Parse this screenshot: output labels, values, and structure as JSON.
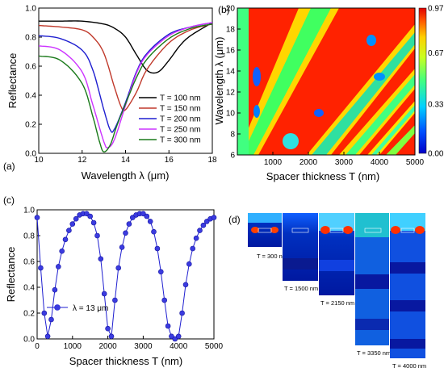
{
  "panels": {
    "a": {
      "label": "(a)",
      "ylabel": "Reflectance",
      "xlabel": "Wavelength λ (μm)",
      "xlim": [
        10,
        18
      ],
      "ylim": [
        0,
        1.0
      ],
      "xticks": [
        "10",
        "12",
        "14",
        "16",
        "18"
      ],
      "yticks": [
        "0.0",
        "0.2",
        "0.4",
        "0.6",
        "0.8",
        "1.0"
      ]
    },
    "b": {
      "label": "(b)",
      "ylabel": "Wavelength λ (μm)",
      "xlabel": "Spacer thickness T (nm)",
      "xlim": [
        0,
        5000
      ],
      "ylim": [
        6,
        20
      ],
      "xticks": [
        "1000",
        "2000",
        "3000",
        "4000",
        "5000"
      ],
      "yticks": [
        "6",
        "8",
        "10",
        "12",
        "14",
        "16",
        "18",
        "20"
      ],
      "colorbar_ticks": [
        "0.97",
        "0.67",
        "0.33",
        "0.00"
      ]
    },
    "c": {
      "label": "(c)",
      "ylabel": "Reflectance",
      "xlabel": "Spacer thickness T (nm)",
      "xlim": [
        0,
        5000
      ],
      "ylim": [
        0,
        1.0
      ],
      "xticks": [
        "0",
        "1000",
        "2000",
        "3000",
        "4000",
        "5000"
      ],
      "yticks": [
        "0.0",
        "0.2",
        "0.4",
        "0.6",
        "0.8",
        "1.0"
      ],
      "legend": "λ = 13 μm"
    },
    "d": {
      "label": "(d)",
      "captions": [
        "T = 300 nm",
        "T = 1500 nm",
        "T = 2150 nm",
        "T = 3350 nm",
        "T = 4000 nm"
      ]
    }
  },
  "colors": {
    "T100": "#000000",
    "T150": "#c0392b",
    "T200": "#1f1fd0",
    "T250": "#cc33ff",
    "T300": "#1a7a1a",
    "c_series": "#1f1fd0"
  },
  "chart_data": [
    {
      "type": "line",
      "panel": "a",
      "xlabel": "Wavelength λ (μm)",
      "ylabel": "Reflectance",
      "xlim": [
        10,
        18
      ],
      "ylim": [
        0,
        1.0
      ],
      "legend_position": "bottom-right",
      "series": [
        {
          "name": "T = 100 nm",
          "color": "#000000",
          "x": [
            10,
            11,
            12,
            13,
            13.5,
            14,
            14.5,
            15,
            15.5,
            16,
            16.5,
            17,
            18
          ],
          "y": [
            0.91,
            0.91,
            0.91,
            0.89,
            0.86,
            0.8,
            0.68,
            0.57,
            0.56,
            0.64,
            0.74,
            0.81,
            0.9
          ]
        },
        {
          "name": "T = 150 nm",
          "color": "#c0392b",
          "x": [
            10,
            11,
            12,
            12.5,
            13,
            13.5,
            13.8,
            14,
            14.5,
            15,
            16,
            17,
            18
          ],
          "y": [
            0.88,
            0.87,
            0.85,
            0.8,
            0.69,
            0.45,
            0.32,
            0.3,
            0.42,
            0.58,
            0.76,
            0.85,
            0.89
          ]
        },
        {
          "name": "T = 200 nm",
          "color": "#1f1fd0",
          "x": [
            10,
            11,
            12,
            12.5,
            13,
            13.3,
            13.5,
            14,
            14.5,
            15,
            16,
            17,
            18
          ],
          "y": [
            0.81,
            0.79,
            0.71,
            0.57,
            0.3,
            0.16,
            0.17,
            0.35,
            0.56,
            0.69,
            0.82,
            0.87,
            0.9
          ]
        },
        {
          "name": "T = 250 nm",
          "color": "#cc33ff",
          "x": [
            10,
            11,
            12,
            12.5,
            13,
            13.2,
            13.5,
            14,
            14.5,
            15,
            16,
            17,
            18
          ],
          "y": [
            0.74,
            0.71,
            0.56,
            0.33,
            0.08,
            0.04,
            0.1,
            0.33,
            0.55,
            0.68,
            0.81,
            0.87,
            0.9
          ]
        },
        {
          "name": "T = 300 nm",
          "color": "#1a7a1a",
          "x": [
            10,
            11,
            12,
            12.5,
            12.8,
            13,
            13.3,
            13.6,
            14,
            14.5,
            15,
            16,
            17,
            18
          ],
          "y": [
            0.67,
            0.64,
            0.48,
            0.25,
            0.08,
            0.01,
            0.06,
            0.19,
            0.34,
            0.52,
            0.65,
            0.79,
            0.86,
            0.89
          ]
        }
      ]
    },
    {
      "type": "heatmap",
      "panel": "b",
      "xlabel": "Spacer thickness T (nm)",
      "ylabel": "Wavelength λ (μm)",
      "xlim": [
        0,
        5000
      ],
      "ylim": [
        6,
        20
      ],
      "colorbar": {
        "min": 0.0,
        "max": 0.97,
        "ticks": [
          0.97,
          0.67,
          0.33,
          0.0
        ]
      }
    },
    {
      "type": "scatter",
      "panel": "c",
      "xlabel": "Spacer thickness T (nm)",
      "ylabel": "Reflectance",
      "xlim": [
        0,
        5000
      ],
      "ylim": [
        0,
        1.0
      ],
      "legend_position": "bottom-left",
      "series": [
        {
          "name": "λ = 13 μm",
          "color": "#1f1fd0",
          "x": [
            0,
            100,
            200,
            300,
            400,
            500,
            600,
            700,
            800,
            900,
            1000,
            1100,
            1200,
            1300,
            1400,
            1500,
            1600,
            1700,
            1800,
            1900,
            2000,
            2100,
            2200,
            2300,
            2400,
            2500,
            2600,
            2700,
            2800,
            2900,
            3000,
            3100,
            3200,
            3300,
            3400,
            3500,
            3600,
            3700,
            3800,
            3900,
            4000,
            4100,
            4200,
            4300,
            4400,
            4500,
            4600,
            4700,
            4800,
            4900,
            5000
          ],
          "y": [
            0.94,
            0.55,
            0.2,
            0.02,
            0.15,
            0.38,
            0.56,
            0.68,
            0.77,
            0.84,
            0.89,
            0.93,
            0.96,
            0.97,
            0.97,
            0.95,
            0.9,
            0.8,
            0.62,
            0.35,
            0.08,
            0.02,
            0.3,
            0.55,
            0.71,
            0.82,
            0.89,
            0.94,
            0.96,
            0.97,
            0.97,
            0.95,
            0.91,
            0.83,
            0.7,
            0.52,
            0.3,
            0.1,
            0.02,
            0.0,
            0.02,
            0.2,
            0.42,
            0.58,
            0.7,
            0.78,
            0.84,
            0.88,
            0.91,
            0.93,
            0.94
          ]
        }
      ]
    }
  ]
}
